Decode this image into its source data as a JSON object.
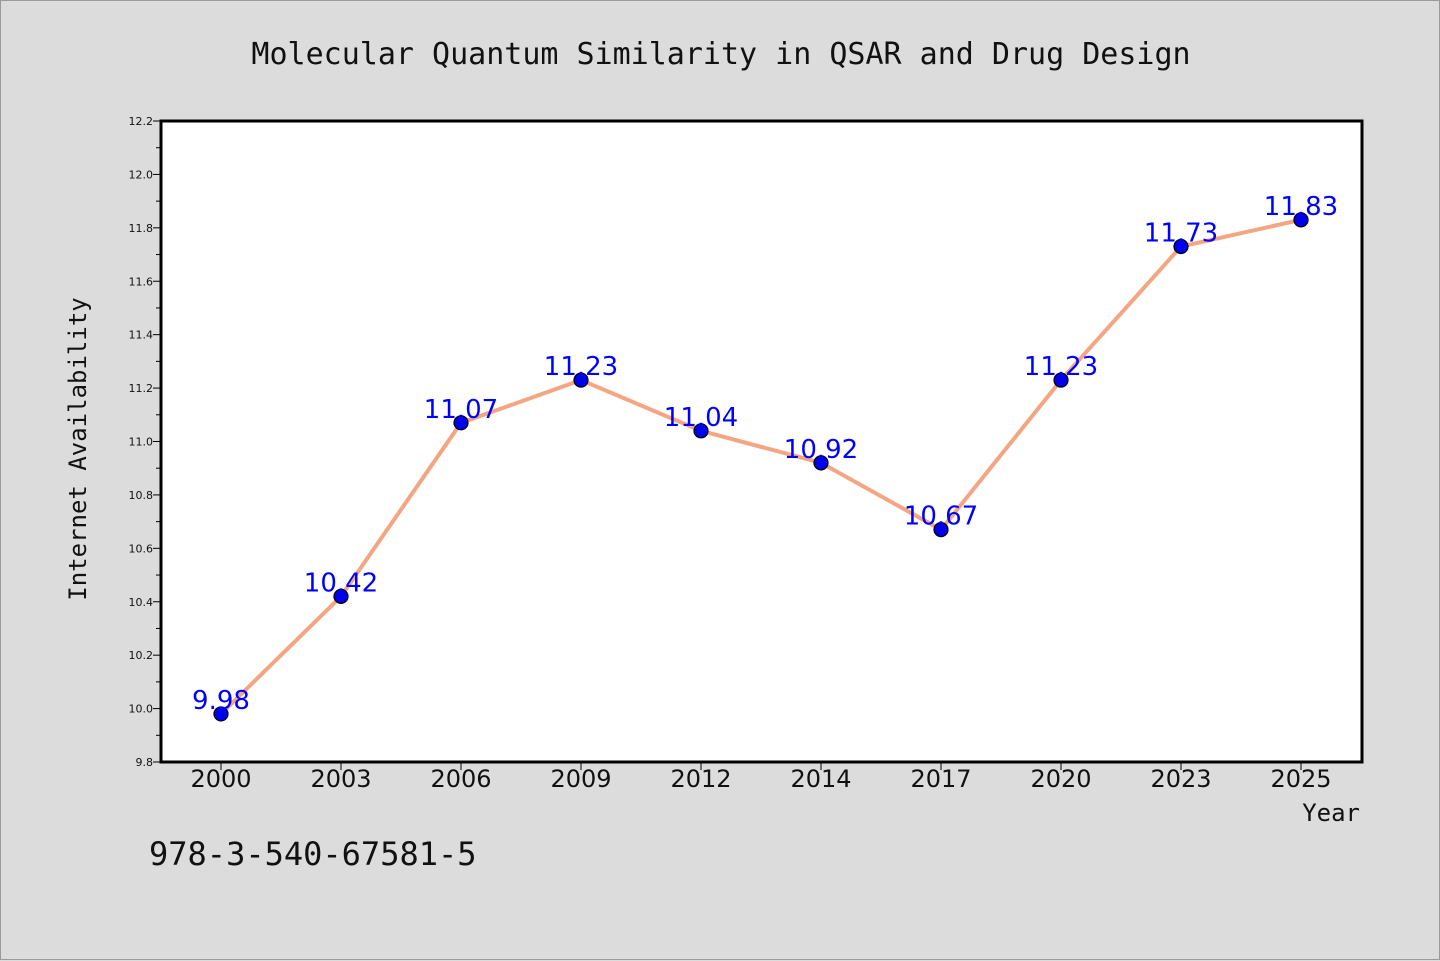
{
  "chart_data": {
    "type": "line",
    "title": "Molecular Quantum Similarity in QSAR and Drug Design",
    "xlabel": "Year",
    "ylabel": "Internet Availability",
    "categories": [
      "2000",
      "2003",
      "2006",
      "2009",
      "2012",
      "2014",
      "2017",
      "2020",
      "2023",
      "2025"
    ],
    "series": [
      {
        "values": [
          9.98,
          10.42,
          11.07,
          11.23,
          11.04,
          10.92,
          10.67,
          11.23,
          11.73,
          11.83
        ],
        "line_color": "#f4a582",
        "marker_color": "#0000ee",
        "label_color": "#0000ff"
      }
    ],
    "ylim": [
      9.8,
      12.2
    ],
    "yticks": [
      "9.8",
      "10.0",
      "10.2",
      "10.4",
      "10.6",
      "10.8",
      "11.0",
      "11.2",
      "11.4",
      "11.6",
      "11.8",
      "12.0",
      "12.2"
    ],
    "grid": false,
    "legend": "none"
  },
  "footer": {
    "code": "978-3-540-67581-5"
  }
}
